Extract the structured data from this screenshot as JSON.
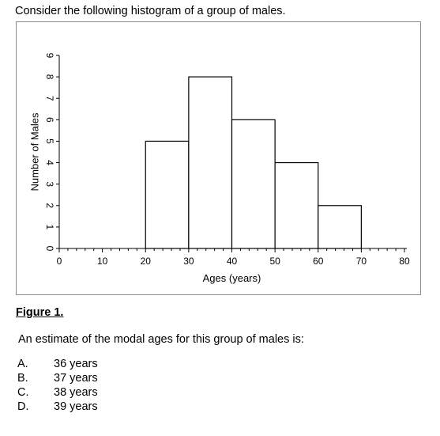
{
  "intro": "Consider the following histogram of a group of males.",
  "figure_label": "Figure 1.",
  "question": "An estimate of the modal ages for this group of males is:",
  "options": [
    {
      "letter": "A.",
      "text": "36 years"
    },
    {
      "letter": "B.",
      "text": "37 years"
    },
    {
      "letter": "C.",
      "text": "38 years"
    },
    {
      "letter": "D.",
      "text": "39 years"
    }
  ],
  "chart_data": {
    "type": "bar",
    "histogram": true,
    "bins": [
      {
        "from": 20,
        "to": 30,
        "value": 5
      },
      {
        "from": 30,
        "to": 40,
        "value": 8
      },
      {
        "from": 40,
        "to": 50,
        "value": 6
      },
      {
        "from": 50,
        "to": 60,
        "value": 4
      },
      {
        "from": 60,
        "to": 70,
        "value": 2
      }
    ],
    "xlabel": "Ages (years)",
    "ylabel": "Number of Males",
    "xlim": [
      0,
      80
    ],
    "ylim": [
      0,
      9
    ],
    "xticks": [
      0,
      10,
      20,
      30,
      40,
      50,
      60,
      70,
      80
    ],
    "yticks": [
      0,
      1,
      2,
      3,
      4,
      5,
      6,
      7,
      8,
      9
    ],
    "x_minor_step": 2,
    "grid": false,
    "legend": "none"
  }
}
